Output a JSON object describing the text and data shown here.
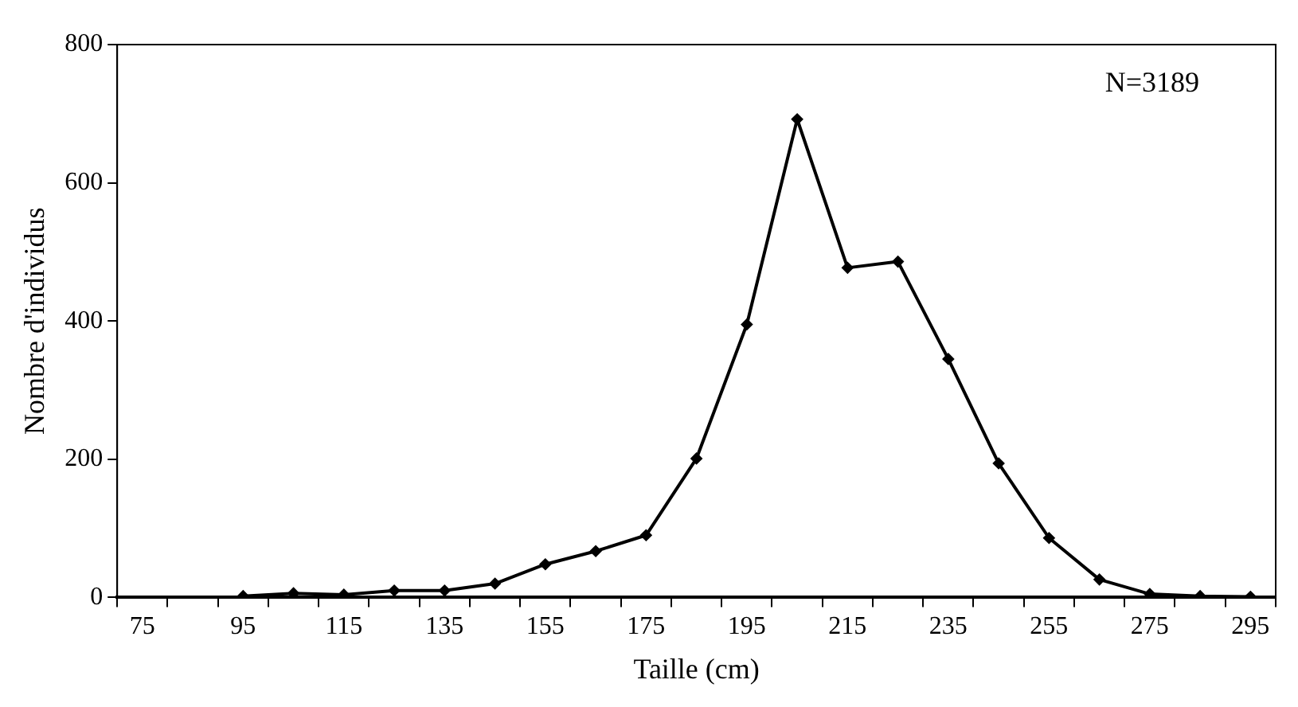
{
  "chart_data": {
    "type": "line",
    "xlabel": "Taille (cm)",
    "ylabel": "Nombre d'individus",
    "annotations": [
      "N=3189"
    ],
    "categories": [
      "75",
      null,
      "95",
      null,
      "115",
      null,
      "135",
      null,
      "155",
      null,
      "175",
      null,
      "195",
      null,
      "215",
      null,
      "235",
      null,
      "255",
      null,
      "275",
      null,
      "295"
    ],
    "series": [
      {
        "color": "#000000",
        "values": [
          null,
          null,
          2,
          6,
          4,
          10,
          10,
          20,
          48,
          67,
          90,
          201,
          395,
          692,
          477,
          486,
          345,
          194,
          86,
          26,
          5,
          2,
          1
        ]
      }
    ],
    "ylim": [
      0,
      800
    ],
    "yticks": [
      0,
      200,
      400,
      600,
      800
    ],
    "grid": false,
    "legend": false,
    "marker": "diamond",
    "line_style": "solid"
  }
}
